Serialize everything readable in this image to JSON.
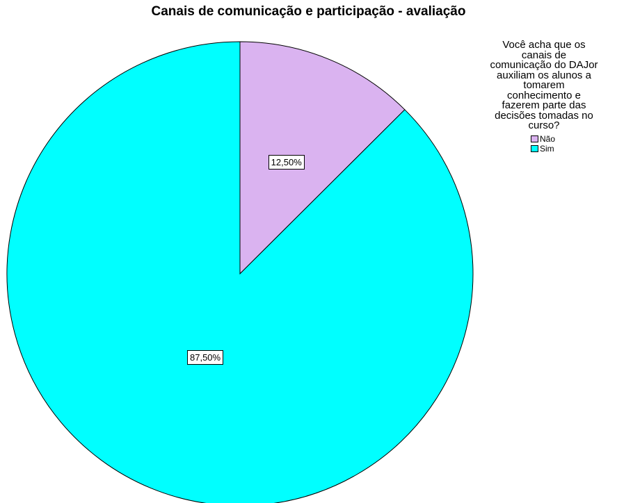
{
  "chart_data": {
    "type": "pie",
    "title": "Canais de comunicação e participação - avaliação",
    "legend_title": "Você acha que os canais de comunicação do DAJor auxiliam os alunos a tomarem conhecimento e fazerem parte das decisões tomadas no curso?",
    "legend_title_lines": [
      "Você acha que os",
      "canais de",
      "comunicação do DAJor",
      "auxiliam os alunos a",
      "tomarem",
      "conhecimento e",
      "fazerem parte das",
      "decisões tomadas no",
      "curso?"
    ],
    "legend_placement": "top-right",
    "slices": [
      {
        "label": "Não",
        "value": 12.5,
        "data_label": "12,50%",
        "color": "#dab3f0"
      },
      {
        "label": "Sim",
        "value": 87.5,
        "data_label": "87,50%",
        "color": "#00ffff"
      }
    ],
    "start_angle": "12 o'clock",
    "direction": "clockwise",
    "outline_color": "#000000"
  }
}
